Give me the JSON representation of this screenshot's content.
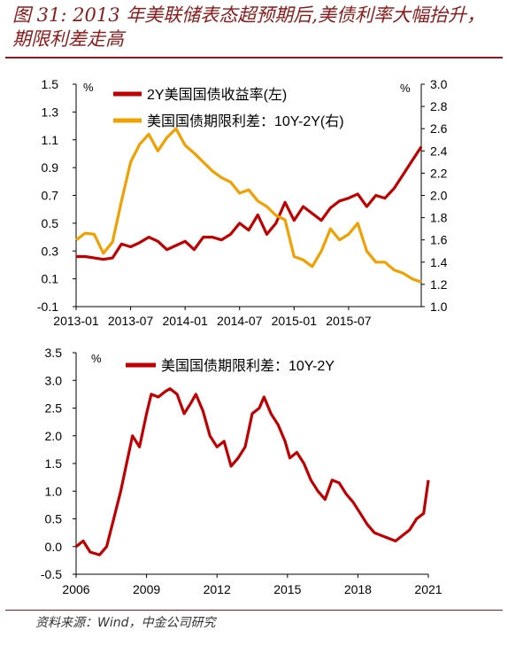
{
  "title": "图 31: 2013 年美联储表态超预期后,美债利率大幅抬升，期限利差走高",
  "source": "资料来源：Wind，中金公司研究",
  "chart_data": [
    {
      "type": "line",
      "y_unit_left": "%",
      "y_unit_right": "%",
      "ylim_left": [
        -0.1,
        1.5
      ],
      "ylim_right": [
        1.0,
        3.0
      ],
      "yticks_left": [
        "-0.1",
        "0.1",
        "0.3",
        "0.5",
        "0.7",
        "0.9",
        "1.1",
        "1.3",
        "1.5"
      ],
      "yticks_right": [
        "1.0",
        "1.2",
        "1.4",
        "1.6",
        "1.8",
        "2.0",
        "2.2",
        "2.4",
        "2.6",
        "2.8",
        "3.0"
      ],
      "xticks": [
        "2013-01",
        "2013-07",
        "2014-01",
        "2014-07",
        "2015-01",
        "2015-07"
      ],
      "x_range": [
        "2013-01",
        "2016-03"
      ],
      "series": [
        {
          "name": "2Y美国国债收益率(左)",
          "axis": "left",
          "color": "#c00000",
          "x": [
            "2013-01",
            "2013-02",
            "2013-03",
            "2013-04",
            "2013-05",
            "2013-06",
            "2013-07",
            "2013-08",
            "2013-09",
            "2013-10",
            "2013-11",
            "2013-12",
            "2014-01",
            "2014-02",
            "2014-03",
            "2014-04",
            "2014-05",
            "2014-06",
            "2014-07",
            "2014-08",
            "2014-09",
            "2014-10",
            "2014-11",
            "2014-12",
            "2015-01",
            "2015-02",
            "2015-03",
            "2015-04",
            "2015-05",
            "2015-06",
            "2015-07",
            "2015-08",
            "2015-09",
            "2015-10",
            "2015-11",
            "2015-12",
            "2016-01",
            "2016-02",
            "2016-03"
          ],
          "values": [
            0.26,
            0.26,
            0.25,
            0.24,
            0.25,
            0.35,
            0.33,
            0.36,
            0.4,
            0.37,
            0.31,
            0.34,
            0.37,
            0.31,
            0.4,
            0.4,
            0.38,
            0.42,
            0.5,
            0.45,
            0.56,
            0.42,
            0.5,
            0.65,
            0.52,
            0.62,
            0.57,
            0.52,
            0.61,
            0.66,
            0.68,
            0.71,
            0.62,
            0.7,
            0.68,
            0.75,
            0.85,
            0.95,
            1.05
          ]
        },
        {
          "name": "美国国债期限利差：10Y-2Y(右)",
          "axis": "right",
          "color": "#f0a000",
          "x": [
            "2013-01",
            "2013-02",
            "2013-03",
            "2013-04",
            "2013-05",
            "2013-06",
            "2013-07",
            "2013-08",
            "2013-09",
            "2013-10",
            "2013-11",
            "2013-12",
            "2014-01",
            "2014-02",
            "2014-03",
            "2014-04",
            "2014-05",
            "2014-06",
            "2014-07",
            "2014-08",
            "2014-09",
            "2014-10",
            "2014-11",
            "2014-12",
            "2015-01",
            "2015-02",
            "2015-03",
            "2015-04",
            "2015-05",
            "2015-06",
            "2015-07",
            "2015-08",
            "2015-09",
            "2015-10",
            "2015-11",
            "2015-12",
            "2016-01",
            "2016-02",
            "2016-03"
          ],
          "values": [
            1.6,
            1.66,
            1.65,
            1.48,
            1.58,
            1.95,
            2.3,
            2.46,
            2.55,
            2.4,
            2.52,
            2.6,
            2.45,
            2.38,
            2.3,
            2.22,
            2.16,
            2.12,
            2.02,
            2.05,
            1.95,
            1.9,
            1.82,
            1.78,
            1.45,
            1.42,
            1.36,
            1.5,
            1.7,
            1.6,
            1.65,
            1.75,
            1.5,
            1.4,
            1.4,
            1.33,
            1.3,
            1.25,
            1.22
          ]
        }
      ]
    },
    {
      "type": "line",
      "y_unit": "%",
      "ylim": [
        -0.5,
        3.5
      ],
      "yticks": [
        "-0.5",
        "0.0",
        "0.5",
        "1.0",
        "1.5",
        "2.0",
        "2.5",
        "3.0",
        "3.5"
      ],
      "xticks": [
        "2006",
        "2009",
        "2012",
        "2015",
        "2018",
        "2021"
      ],
      "x_range": [
        2006,
        2021
      ],
      "series": [
        {
          "name": "美国国债期限利差：10Y-2Y",
          "color": "#c00000",
          "x": [
            2006.0,
            2006.3,
            2006.6,
            2007.0,
            2007.3,
            2007.6,
            2007.9,
            2008.1,
            2008.4,
            2008.7,
            2009.0,
            2009.2,
            2009.5,
            2009.8,
            2010.0,
            2010.3,
            2010.6,
            2010.9,
            2011.1,
            2011.4,
            2011.7,
            2012.0,
            2012.3,
            2012.6,
            2012.9,
            2013.2,
            2013.5,
            2013.8,
            2014.0,
            2014.3,
            2014.6,
            2014.9,
            2015.1,
            2015.4,
            2015.7,
            2016.0,
            2016.3,
            2016.6,
            2016.9,
            2017.2,
            2017.5,
            2017.8,
            2018.1,
            2018.4,
            2018.7,
            2019.0,
            2019.3,
            2019.6,
            2019.9,
            2020.2,
            2020.5,
            2020.8,
            2021.0
          ],
          "values": [
            0.0,
            0.1,
            -0.1,
            -0.15,
            0.0,
            0.5,
            1.0,
            1.4,
            2.0,
            1.8,
            2.4,
            2.75,
            2.7,
            2.8,
            2.85,
            2.75,
            2.4,
            2.6,
            2.75,
            2.45,
            2.0,
            1.8,
            1.9,
            1.45,
            1.6,
            1.8,
            2.4,
            2.5,
            2.7,
            2.4,
            2.2,
            1.9,
            1.6,
            1.7,
            1.5,
            1.2,
            1.0,
            0.85,
            1.2,
            1.15,
            0.95,
            0.8,
            0.6,
            0.4,
            0.25,
            0.2,
            0.15,
            0.1,
            0.2,
            0.3,
            0.5,
            0.6,
            1.2
          ]
        }
      ]
    }
  ]
}
